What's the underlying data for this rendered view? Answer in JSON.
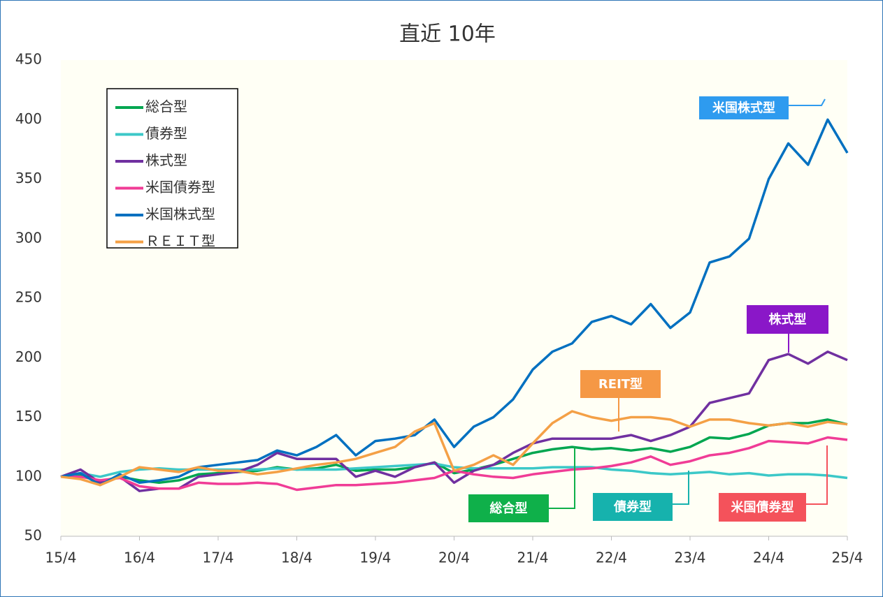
{
  "chart_data": {
    "type": "line",
    "title": "直近 10年",
    "categories": [
      "15/4",
      null,
      null,
      null,
      "16/4",
      null,
      null,
      null,
      "17/4",
      null,
      null,
      null,
      "18/4",
      null,
      null,
      null,
      "19/4",
      null,
      null,
      null,
      "20/4",
      null,
      null,
      null,
      "21/4",
      null,
      null,
      null,
      "22/4",
      null,
      null,
      null,
      "23/4",
      null,
      null,
      null,
      "24/4",
      null,
      null,
      null,
      "25/4"
    ],
    "ylim": [
      50,
      450
    ],
    "yticks": [
      50,
      100,
      150,
      200,
      250,
      300,
      350,
      400,
      450
    ],
    "legend": "top-left",
    "series": [
      {
        "name": "総合型",
        "color": "#00a650",
        "values": [
          100,
          102,
          96,
          100,
          97,
          95,
          97,
          102,
          103,
          104,
          105,
          108,
          106,
          107,
          110,
          105,
          106,
          106,
          108,
          112,
          103,
          106,
          110,
          115,
          120,
          123,
          125,
          123,
          124,
          122,
          124,
          121,
          125,
          133,
          132,
          136,
          143,
          145,
          145,
          148,
          144
        ]
      },
      {
        "name": "債券型",
        "color": "#3cc8c8",
        "values": [
          100,
          103,
          100,
          104,
          106,
          107,
          106,
          106,
          106,
          106,
          106,
          107,
          106,
          106,
          106,
          107,
          108,
          109,
          110,
          111,
          108,
          107,
          107,
          107,
          107,
          108,
          108,
          108,
          106,
          105,
          103,
          102,
          103,
          104,
          102,
          103,
          101,
          102,
          102,
          101,
          99
        ]
      },
      {
        "name": "株式型",
        "color": "#7030a0",
        "values": [
          100,
          106,
          95,
          100,
          88,
          90,
          90,
          100,
          102,
          104,
          110,
          120,
          115,
          115,
          115,
          100,
          105,
          100,
          108,
          112,
          95,
          105,
          110,
          120,
          128,
          132,
          132,
          132,
          132,
          135,
          130,
          135,
          142,
          162,
          166,
          170,
          198,
          203,
          195,
          205,
          198
        ]
      },
      {
        "name": "米国債券型",
        "color": "#f03c96",
        "values": [
          100,
          100,
          97,
          99,
          92,
          90,
          90,
          95,
          94,
          94,
          95,
          94,
          89,
          91,
          93,
          93,
          94,
          95,
          97,
          99,
          105,
          102,
          100,
          99,
          102,
          104,
          106,
          107,
          109,
          112,
          117,
          110,
          113,
          118,
          120,
          124,
          130,
          129,
          128,
          133,
          131
        ]
      },
      {
        "name": "米国株式型",
        "color": "#0070c0",
        "values": [
          100,
          103,
          93,
          102,
          95,
          97,
          100,
          108,
          110,
          112,
          114,
          122,
          118,
          125,
          135,
          118,
          130,
          132,
          135,
          148,
          125,
          142,
          150,
          165,
          190,
          205,
          212,
          230,
          235,
          228,
          245,
          225,
          238,
          280,
          285,
          300,
          350,
          380,
          362,
          400,
          372
        ]
      },
      {
        "name": "ＲＥＩＴ型",
        "color": "#f4a046",
        "values": [
          100,
          98,
          93,
          100,
          108,
          106,
          104,
          108,
          105,
          105,
          102,
          104,
          107,
          110,
          112,
          115,
          120,
          125,
          138,
          145,
          105,
          110,
          118,
          110,
          128,
          145,
          155,
          150,
          147,
          150,
          150,
          148,
          142,
          148,
          148,
          145,
          143,
          145,
          142,
          146,
          144
        ]
      }
    ],
    "annotations": [
      {
        "text": "米国株式型",
        "color": "#2e9bef"
      },
      {
        "text": "株式型",
        "color": "#8a17c8"
      },
      {
        "text": "REIT型",
        "color": "#f59845"
      },
      {
        "text": "総合型",
        "color": "#0fb04a"
      },
      {
        "text": "債券型",
        "color": "#16b2ad"
      },
      {
        "text": "米国債券型",
        "color": "#f4525b"
      }
    ]
  }
}
